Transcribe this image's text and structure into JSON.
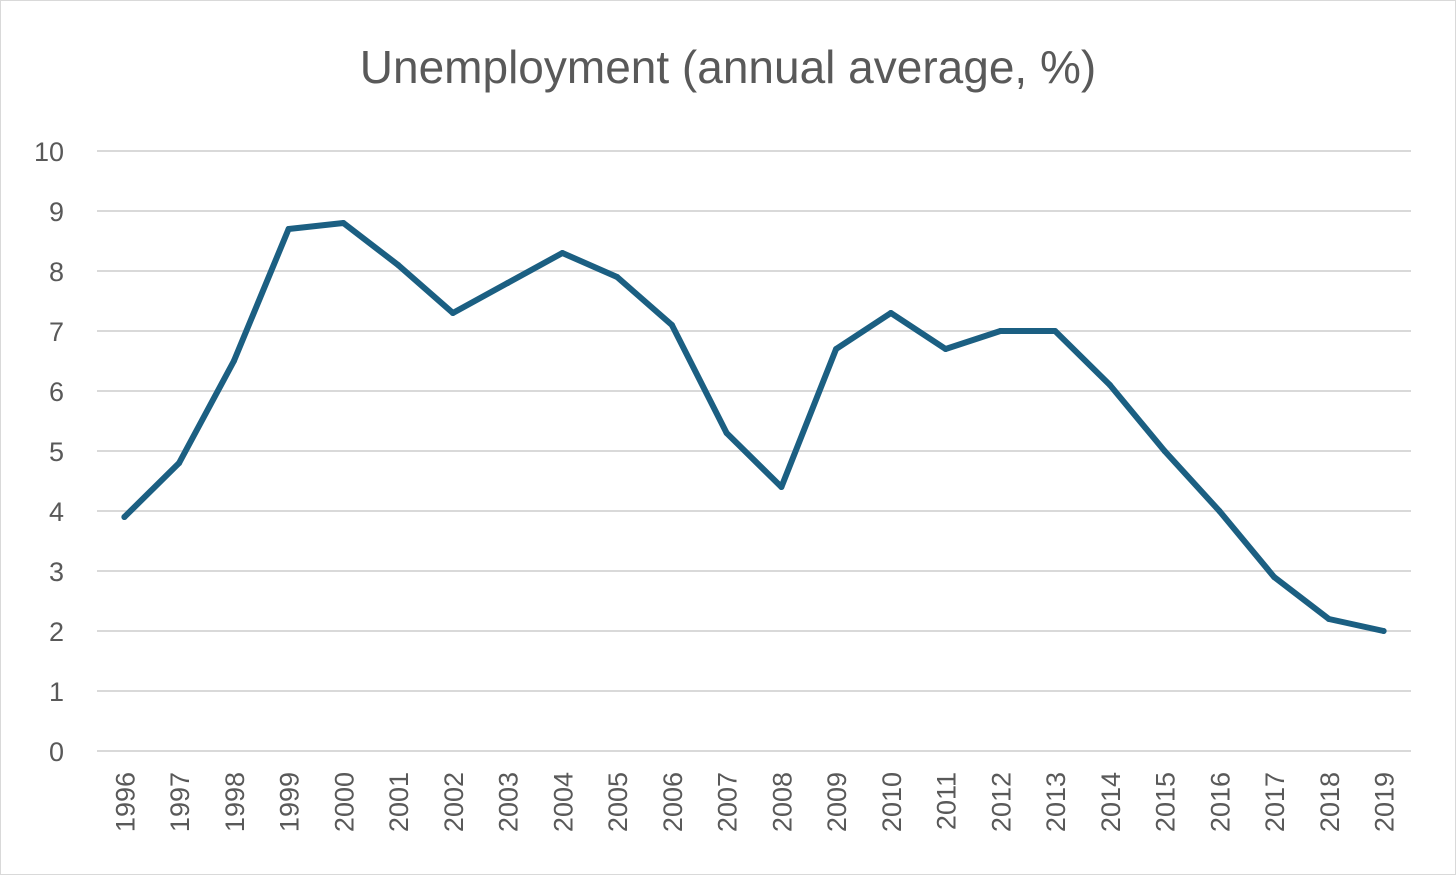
{
  "chart_data": {
    "type": "line",
    "title": "Unemployment (annual average, %)",
    "xlabel": "",
    "ylabel": "",
    "categories": [
      "1996",
      "1997",
      "1998",
      "1999",
      "2000",
      "2001",
      "2002",
      "2003",
      "2004",
      "2005",
      "2006",
      "2007",
      "2008",
      "2009",
      "2010",
      "2011",
      "2012",
      "2013",
      "2014",
      "2015",
      "2016",
      "2017",
      "2018",
      "2019"
    ],
    "series": [
      {
        "values": [
          3.9,
          4.8,
          6.5,
          8.7,
          8.8,
          8.1,
          7.3,
          7.8,
          8.3,
          7.9,
          7.1,
          5.3,
          4.4,
          6.7,
          7.3,
          6.7,
          7.0,
          7.0,
          6.1,
          5.0,
          4.0,
          2.9,
          2.2,
          2.0
        ],
        "color": "#1b5f82"
      }
    ],
    "ylim": [
      0,
      10
    ],
    "yticks": [
      "0",
      "1",
      "2",
      "3",
      "4",
      "5",
      "6",
      "7",
      "8",
      "9",
      "10"
    ],
    "grid": true,
    "gridColor": "#d9d9d9",
    "legend": "none"
  }
}
